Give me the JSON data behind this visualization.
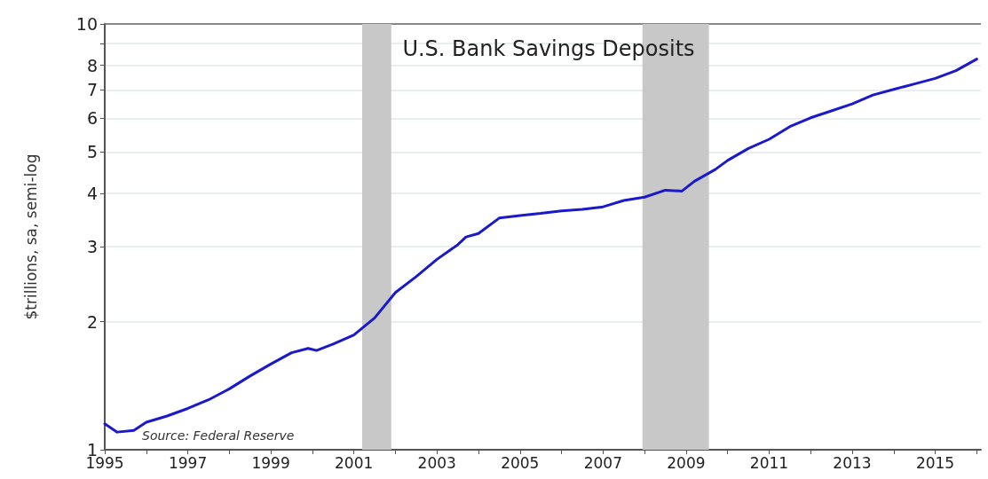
{
  "chart_data": {
    "type": "line",
    "title": "U.S. Bank Savings Deposits",
    "ylabel": "$trillions, sa, semi-log",
    "annotations": [
      "Source: Federal Reserve"
    ],
    "x": [
      1995.0,
      1995.3,
      1995.7,
      1996.0,
      1996.5,
      1997.0,
      1997.5,
      1998.0,
      1998.5,
      1999.0,
      1999.5,
      1999.9,
      2000.1,
      2000.5,
      2001.0,
      2001.5,
      2002.0,
      2002.5,
      2003.0,
      2003.5,
      2003.7,
      2004.0,
      2004.5,
      2005.0,
      2005.5,
      2006.0,
      2006.5,
      2007.0,
      2007.5,
      2008.0,
      2008.5,
      2008.9,
      2009.2,
      2009.7,
      2010.0,
      2010.5,
      2011.0,
      2011.5,
      2012.0,
      2012.5,
      2013.0,
      2013.5,
      2014.0,
      2014.5,
      2015.0,
      2015.5,
      2016.0
    ],
    "series": [
      {
        "color": "#1a1acc",
        "values": [
          1.15,
          1.1,
          1.11,
          1.16,
          1.2,
          1.25,
          1.31,
          1.39,
          1.49,
          1.59,
          1.69,
          1.73,
          1.71,
          1.77,
          1.86,
          2.04,
          2.34,
          2.55,
          2.8,
          3.03,
          3.16,
          3.22,
          3.5,
          3.55,
          3.59,
          3.64,
          3.67,
          3.72,
          3.85,
          3.92,
          4.07,
          4.05,
          4.27,
          4.55,
          4.78,
          5.1,
          5.36,
          5.74,
          6.02,
          6.25,
          6.49,
          6.81,
          7.02,
          7.23,
          7.45,
          7.77,
          8.27
        ]
      }
    ],
    "bands": [
      {
        "axis": "x",
        "from": 2001.2,
        "to": 2001.9,
        "color": "#c8c8c8"
      },
      {
        "axis": "x",
        "from": 2007.95,
        "to": 2009.55,
        "color": "#c8c8c8"
      }
    ],
    "log": "y",
    "xlim": [
      1995,
      2016.1
    ],
    "ylim": [
      1,
      10
    ],
    "xticks": [
      1995,
      {
        "value": 1996,
        "label": null
      },
      1997,
      {
        "value": 1998,
        "label": null
      },
      1999,
      {
        "value": 2000,
        "label": null
      },
      2001,
      {
        "value": 2002,
        "label": null
      },
      2003,
      {
        "value": 2004,
        "label": null
      },
      2005,
      {
        "value": 2006,
        "label": null
      },
      2007,
      {
        "value": 2008,
        "label": null
      },
      2009,
      {
        "value": 2010,
        "label": null
      },
      2011,
      {
        "value": 2012,
        "label": null
      },
      2013,
      {
        "value": 2014,
        "label": null
      },
      2015,
      {
        "value": 2016,
        "label": null
      }
    ],
    "yticks": [
      1,
      2,
      3,
      4,
      5,
      6,
      7,
      8,
      {
        "value": 9,
        "label": null
      },
      10
    ],
    "grid": "y",
    "legend": false,
    "marker": "none",
    "line_style": "solid"
  }
}
